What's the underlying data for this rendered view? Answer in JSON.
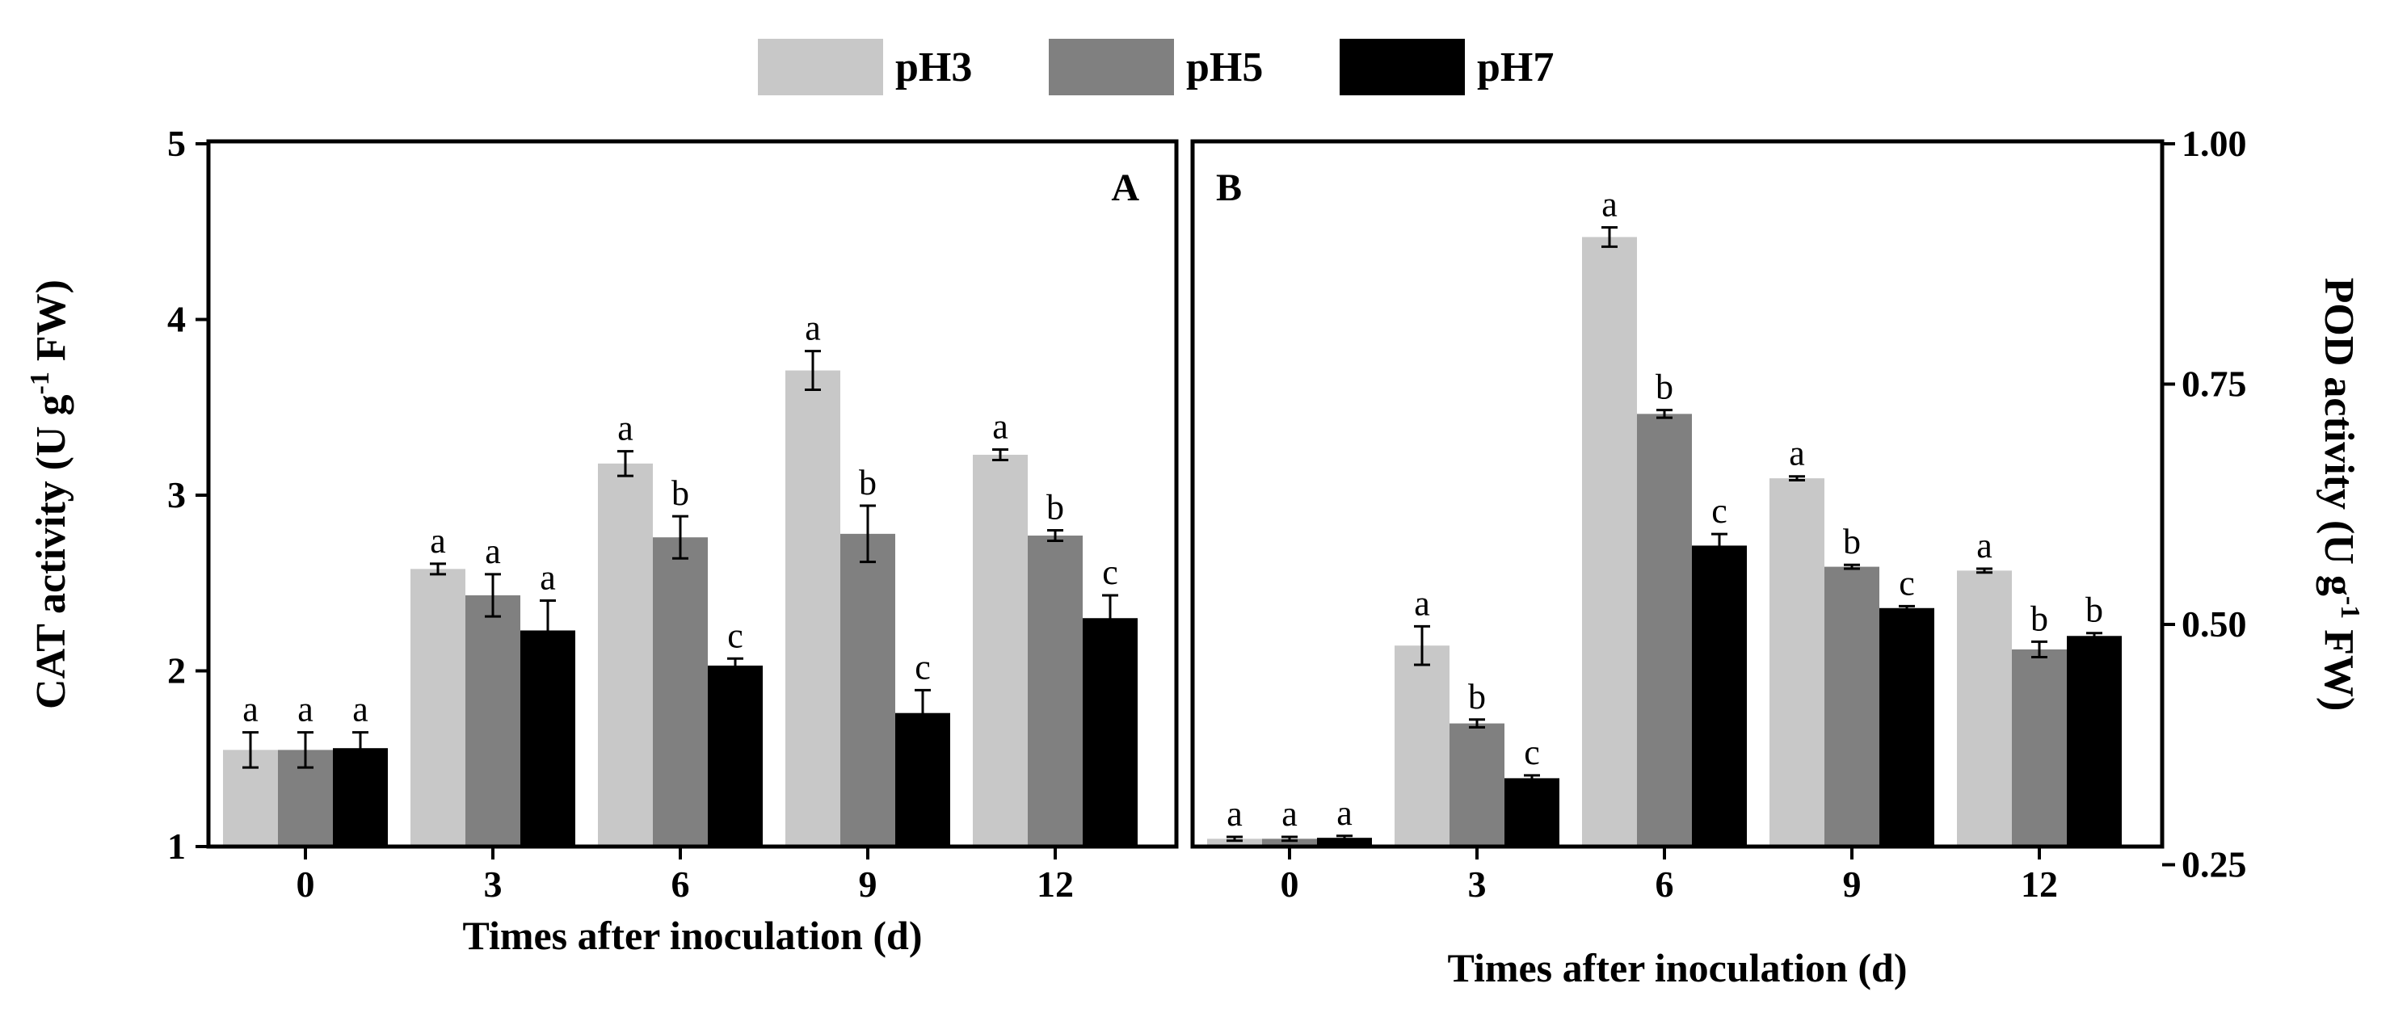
{
  "legend": [
    {
      "label": "pH3",
      "color": "#c8c8c8"
    },
    {
      "label": "pH5",
      "color": "#808080"
    },
    {
      "label": "pH7",
      "color": "#000000"
    }
  ],
  "chart_data": [
    {
      "type": "bar",
      "panel_label": "A",
      "xlabel": "Times after inoculation (d)",
      "ylabel": "CAT activity (U g-1 FW)",
      "ylabel_parts": {
        "pre": "CAT activity (U g",
        "sup": "-1",
        "post": " FW)"
      },
      "ylim": [
        1,
        5
      ],
      "yticks": [
        "1",
        "2",
        "3",
        "4",
        "5"
      ],
      "yaxis_side": "left",
      "categories": [
        "0",
        "3",
        "6",
        "9",
        "12"
      ],
      "series": [
        {
          "name": "pH3",
          "color": "#c8c8c8",
          "values": [
            1.55,
            2.58,
            3.18,
            3.71,
            3.23
          ],
          "errors": [
            0.1,
            0.03,
            0.07,
            0.11,
            0.03
          ],
          "letters": [
            "a",
            "a",
            "a",
            "a",
            "a"
          ]
        },
        {
          "name": "pH5",
          "color": "#808080",
          "values": [
            1.55,
            2.43,
            2.76,
            2.78,
            2.77
          ],
          "errors": [
            0.1,
            0.12,
            0.12,
            0.16,
            0.03
          ],
          "letters": [
            "a",
            "a",
            "b",
            "b",
            "b"
          ]
        },
        {
          "name": "pH7",
          "color": "#000000",
          "values": [
            1.56,
            2.23,
            2.03,
            1.76,
            2.3
          ],
          "errors": [
            0.09,
            0.17,
            0.04,
            0.13,
            0.13
          ],
          "letters": [
            "a",
            "a",
            "c",
            "c",
            "c"
          ]
        }
      ]
    },
    {
      "type": "bar",
      "panel_label": "B",
      "xlabel": "Times after inoculation (d)",
      "ylabel": "POD activity (U g-1 FW)",
      "ylabel_parts": {
        "pre": "POD activity (U g",
        "sup": "-1",
        "post": " FW)"
      },
      "ylim": [
        0.2,
        1.0
      ],
      "yticks": [
        "0.25",
        "0.50",
        "0.75",
        "1.00"
      ],
      "yaxis_side": "right",
      "categories": [
        "0",
        "3",
        "6",
        "9",
        "12"
      ],
      "series": [
        {
          "name": "pH3",
          "color": "#c8c8c8",
          "values": [
            0.277,
            0.478,
            0.903,
            0.652,
            0.556
          ],
          "errors": [
            0.002,
            0.02,
            0.01,
            0.002,
            0.002
          ],
          "letters": [
            "a",
            "a",
            "a",
            "a",
            "a"
          ]
        },
        {
          "name": "pH5",
          "color": "#808080",
          "values": [
            0.277,
            0.397,
            0.719,
            0.56,
            0.474
          ],
          "errors": [
            0.002,
            0.004,
            0.004,
            0.002,
            0.008
          ],
          "letters": [
            "a",
            "b",
            "b",
            "b",
            "b"
          ]
        },
        {
          "name": "pH7",
          "color": "#000000",
          "values": [
            0.278,
            0.34,
            0.582,
            0.517,
            0.488
          ],
          "errors": [
            0.002,
            0.003,
            0.012,
            0.002,
            0.003
          ],
          "letters": [
            "a",
            "c",
            "c",
            "c",
            "b"
          ]
        }
      ]
    }
  ]
}
